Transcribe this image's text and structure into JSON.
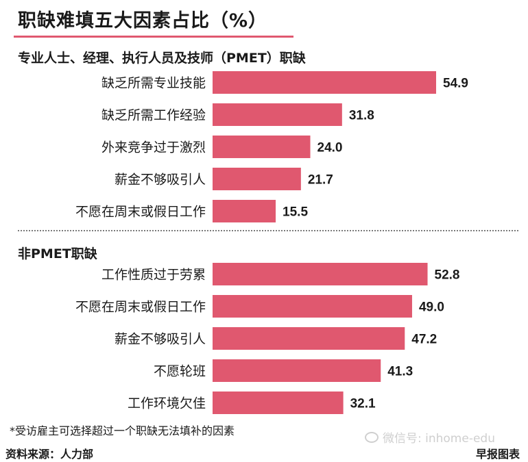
{
  "title": "职缺难填五大因素占比（%）",
  "footnote": "*受访雇主可选择超过一个职缺无法填补的因素",
  "source": "资料来源：人力部",
  "credit": "早报图表",
  "watermark": "微信号: inhome-edu",
  "colors": {
    "bar": "#e0586f",
    "accent": "#e0586f"
  },
  "chart_data": [
    {
      "type": "bar",
      "orientation": "horizontal",
      "title": "专业人士、经理、执行人员及技师（PMET）职缺",
      "categories": [
        "缺乏所需专业技能",
        "缺乏所需工作经验",
        "外来竞争过于激烈",
        "薪金不够吸引人",
        "不愿在周末或假日工作"
      ],
      "values": [
        54.9,
        31.8,
        24.0,
        21.7,
        15.5
      ],
      "value_labels": [
        "54.9",
        "31.8",
        "24.0",
        "21.7",
        "15.5"
      ],
      "xlim": [
        0,
        60
      ],
      "grid": false
    },
    {
      "type": "bar",
      "orientation": "horizontal",
      "title": "非PMET职缺",
      "categories": [
        "工作性质过于劳累",
        "不愿在周末或假日工作",
        "薪金不够吸引人",
        "不愿轮班",
        "工作环境欠佳"
      ],
      "values": [
        52.8,
        49.0,
        47.2,
        41.3,
        32.1
      ],
      "value_labels": [
        "52.8",
        "49.0",
        "47.2",
        "41.3",
        "32.1"
      ],
      "xlim": [
        0,
        60
      ],
      "grid": false
    }
  ]
}
